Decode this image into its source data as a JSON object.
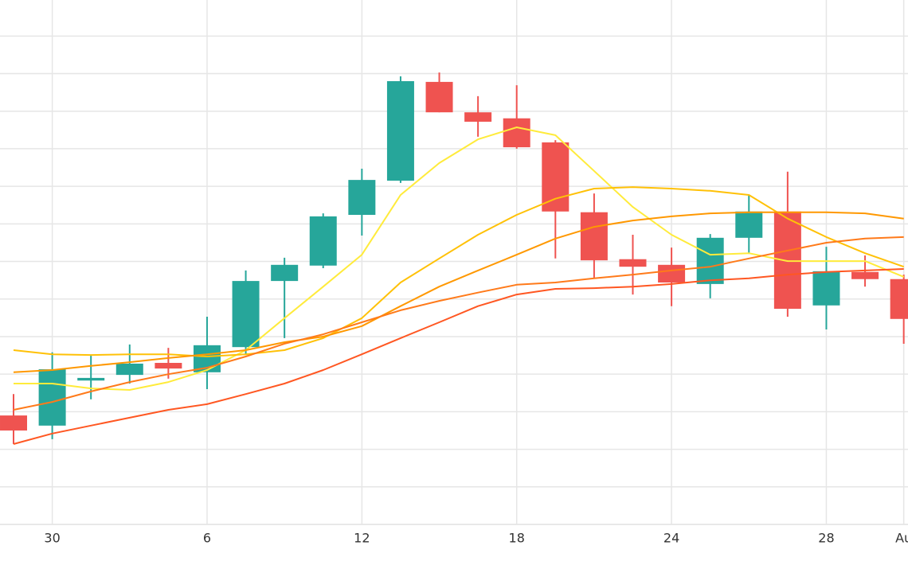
{
  "chart_data": {
    "type": "candlestick",
    "categories": [
      null,
      "30",
      null,
      null,
      null,
      "6",
      null,
      null,
      null,
      "12",
      null,
      null,
      null,
      "18",
      null,
      null,
      null,
      "24",
      null,
      null,
      null,
      "28",
      null,
      "Au"
    ],
    "open": [
      2.9,
      2.63,
      3.83,
      3.98,
      4.3,
      4.05,
      4.72,
      6.48,
      6.89,
      8.24,
      9.15,
      11.78,
      10.97,
      10.81,
      10.17,
      8.31,
      7.06,
      6.91,
      6.4,
      7.63,
      8.33,
      5.83,
      6.72,
      6.53
    ],
    "high": [
      3.47,
      4.58,
      4.49,
      4.79,
      4.7,
      5.53,
      6.76,
      7.1,
      8.28,
      9.47,
      11.93,
      12.03,
      11.4,
      11.69,
      10.23,
      8.81,
      7.71,
      7.37,
      7.73,
      8.77,
      9.39,
      7.39,
      7.16,
      6.65
    ],
    "low": [
      2.14,
      2.27,
      3.33,
      3.75,
      3.88,
      3.6,
      4.51,
      4.96,
      6.82,
      7.69,
      9.09,
      10.97,
      10.32,
      10.0,
      7.08,
      6.55,
      6.12,
      5.81,
      6.02,
      7.2,
      5.53,
      5.19,
      6.33,
      4.81
    ],
    "close": [
      2.5,
      4.13,
      3.9,
      4.28,
      4.15,
      4.77,
      6.48,
      6.91,
      8.2,
      9.17,
      11.8,
      10.97,
      10.72,
      10.04,
      8.33,
      7.03,
      6.86,
      6.44,
      7.63,
      8.33,
      5.74,
      6.74,
      6.53,
      5.47
    ],
    "up_color": "#26a69a",
    "down_color": "#ef5350",
    "series": [
      {
        "color": "#ffeb3b",
        "values": [
          3.75,
          3.75,
          3.62,
          3.58,
          3.79,
          4.11,
          4.64,
          5.49,
          6.33,
          7.18,
          8.77,
          9.62,
          10.25,
          10.57,
          10.36,
          9.41,
          8.45,
          7.71,
          7.18,
          7.22,
          7.01,
          7.01,
          7.01,
          6.59
        ]
      },
      {
        "color": "#ffc107",
        "values": [
          4.64,
          4.53,
          4.51,
          4.53,
          4.53,
          4.47,
          4.53,
          4.64,
          4.96,
          5.49,
          6.44,
          7.08,
          7.71,
          8.24,
          8.67,
          8.94,
          8.98,
          8.94,
          8.88,
          8.77,
          8.14,
          7.65,
          7.22,
          6.86
        ]
      },
      {
        "color": "#ff9800",
        "values": [
          4.05,
          4.11,
          4.22,
          4.32,
          4.43,
          4.53,
          4.64,
          4.85,
          5.0,
          5.28,
          5.81,
          6.33,
          6.76,
          7.18,
          7.61,
          7.92,
          8.09,
          8.2,
          8.28,
          8.31,
          8.31,
          8.31,
          8.28,
          8.14
        ]
      },
      {
        "color": "#ff7a1a",
        "values": [
          3.05,
          3.26,
          3.54,
          3.79,
          4.0,
          4.17,
          4.47,
          4.81,
          5.06,
          5.38,
          5.7,
          5.95,
          6.17,
          6.38,
          6.44,
          6.55,
          6.65,
          6.76,
          6.86,
          7.08,
          7.29,
          7.5,
          7.61,
          7.65
        ]
      },
      {
        "color": "#ff5722",
        "values": [
          2.14,
          2.42,
          2.63,
          2.84,
          3.05,
          3.2,
          3.47,
          3.75,
          4.11,
          4.53,
          4.96,
          5.38,
          5.81,
          6.12,
          6.27,
          6.29,
          6.33,
          6.4,
          6.5,
          6.55,
          6.65,
          6.72,
          6.76,
          6.8
        ]
      }
    ],
    "xlim": [
      -0.35,
      23.11
    ],
    "ylim": [
      0,
      13.96
    ],
    "ygrid": [
      1,
      2,
      3,
      4,
      5,
      6,
      7,
      8,
      9,
      10,
      11,
      12,
      13
    ],
    "grid": true
  }
}
